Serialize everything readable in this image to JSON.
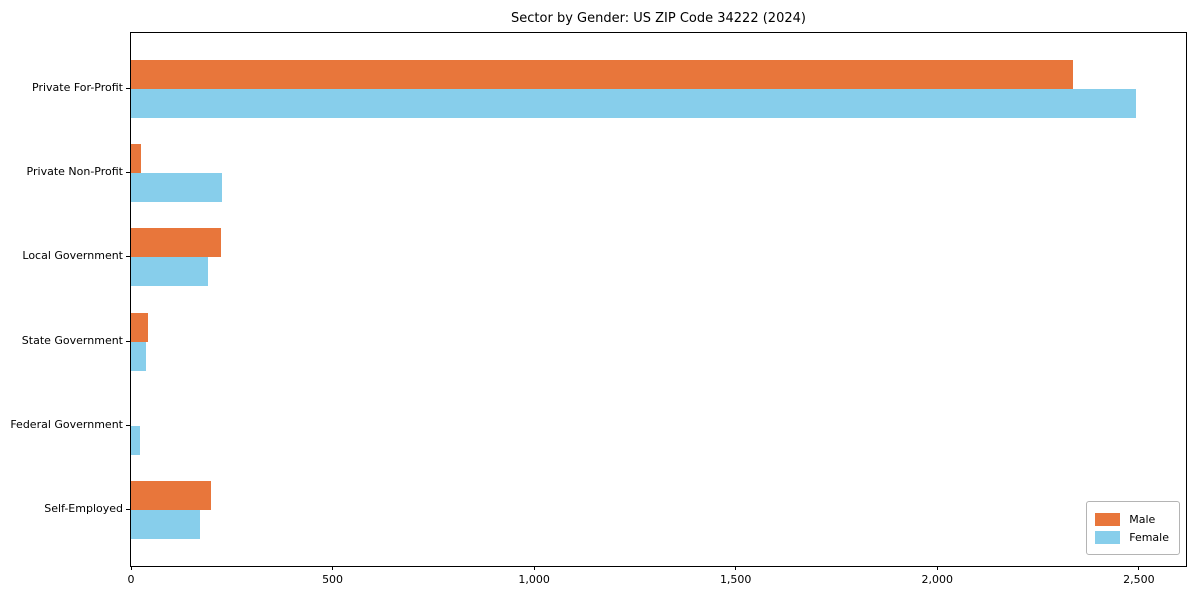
{
  "chart_data": {
    "type": "bar",
    "orientation": "horizontal",
    "title": "Sector by Gender: US ZIP Code 34222 (2024)",
    "categories": [
      "Private For-Profit",
      "Private Non-Profit",
      "Local Government",
      "State Government",
      "Federal Government",
      "Self-Employed"
    ],
    "series": [
      {
        "name": "Male",
        "color": "#E8763B",
        "values": [
          2337,
          25,
          223,
          42,
          0,
          198
        ]
      },
      {
        "name": "Female",
        "color": "#87CEEB",
        "values": [
          2493,
          226,
          192,
          37,
          22,
          170
        ]
      }
    ],
    "xlim": [
      0,
      2617
    ],
    "xticks": [
      0,
      500,
      1000,
      1500,
      2000,
      2500
    ],
    "xtick_labels": [
      "0",
      "500",
      "1,000",
      "1,500",
      "2,000",
      "2,500"
    ],
    "ylabel": "",
    "xlabel": "",
    "grid": false,
    "legend_position": "lower right",
    "axis_color": "#000000",
    "background_color": "#FFFFFF"
  }
}
